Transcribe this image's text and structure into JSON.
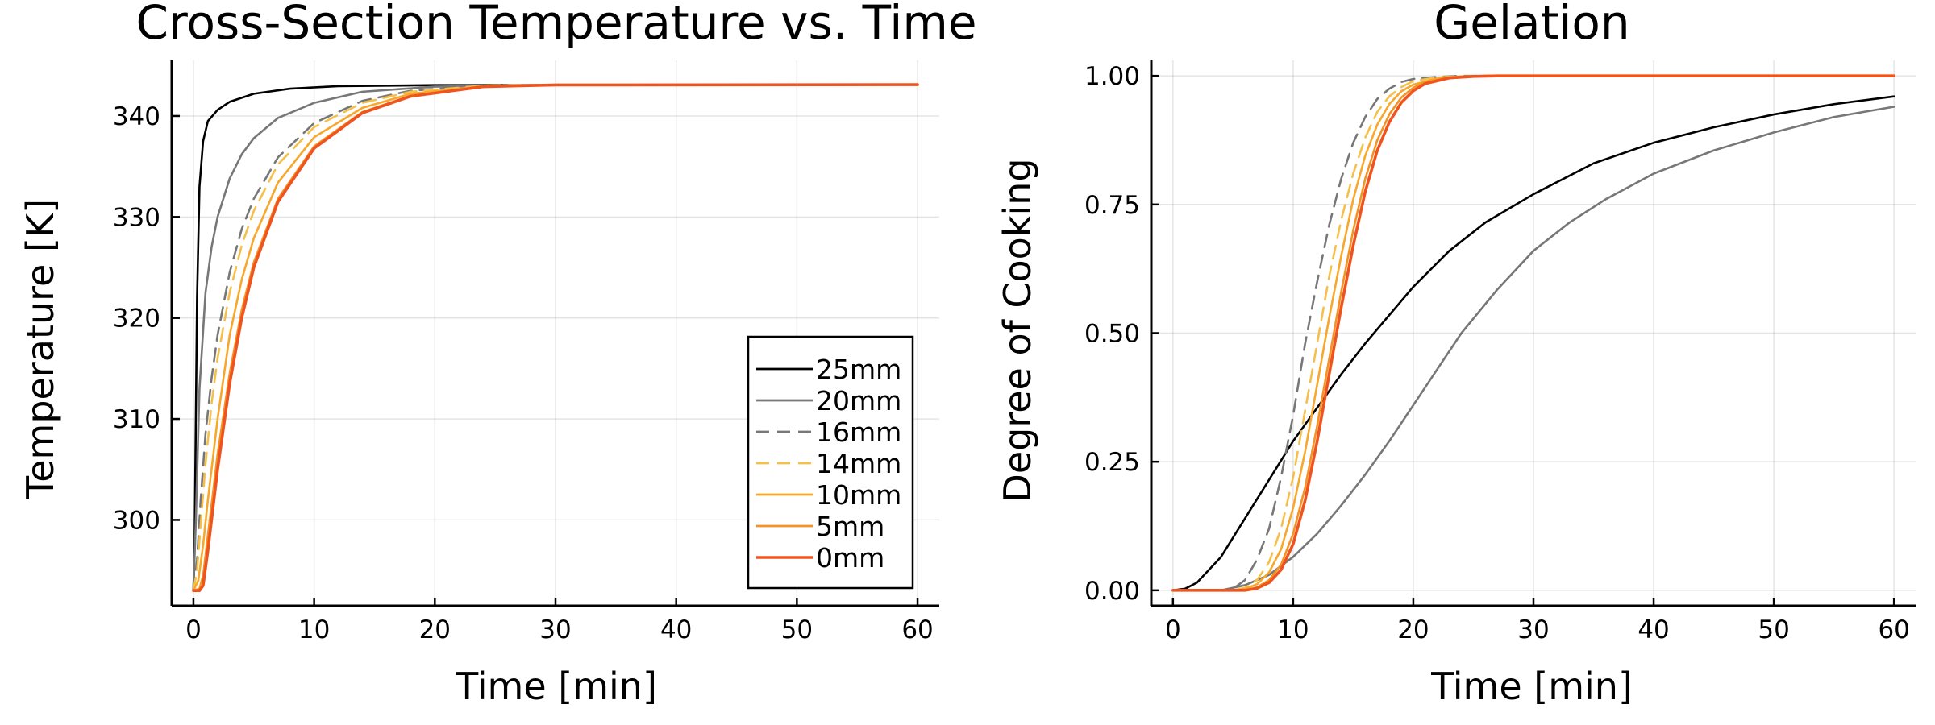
{
  "chart_data": [
    {
      "type": "line",
      "title": "Cross-Section Temperature vs. Time",
      "xlabel": "Time [min]",
      "ylabel": "Temperature [K]",
      "xlim": [
        -1.8,
        61.8
      ],
      "ylim": [
        291.5,
        345.5
      ],
      "xticks": [
        0,
        10,
        20,
        30,
        40,
        50,
        60
      ],
      "yticks": [
        300,
        310,
        320,
        330,
        340
      ],
      "grid": true,
      "legend": "bottom-right",
      "series": [
        {
          "name": "25mm",
          "color": "#000000",
          "dash": "solid",
          "x": [
            0,
            0.1,
            0.2,
            0.3,
            0.5,
            0.8,
            1.2,
            2,
            3,
            5,
            8,
            12,
            20,
            60
          ],
          "y": [
            293,
            298,
            310,
            322,
            333,
            337.5,
            339.5,
            340.6,
            341.4,
            342.2,
            342.7,
            342.95,
            343.05,
            343.1
          ]
        },
        {
          "name": "20mm",
          "color": "#777777",
          "dash": "solid",
          "x": [
            0,
            0.2,
            0.5,
            1,
            1.5,
            2,
            3,
            4,
            5,
            7,
            10,
            14,
            20,
            30,
            60
          ],
          "y": [
            293,
            300,
            313,
            322.5,
            327,
            330,
            333.8,
            336.2,
            337.8,
            339.8,
            341.3,
            342.4,
            342.9,
            343.05,
            343.1
          ]
        },
        {
          "name": "16mm",
          "color": "#777777",
          "dash": "dashed",
          "x": [
            0,
            0.3,
            0.6,
            1,
            1.5,
            2,
            3,
            4,
            5,
            7,
            10,
            14,
            18,
            24,
            30,
            60
          ],
          "y": [
            293,
            296,
            302,
            308.5,
            314,
            318.3,
            324.5,
            328.8,
            331.8,
            335.9,
            339.3,
            341.5,
            342.5,
            343,
            343.08,
            343.1
          ]
        },
        {
          "name": "14mm",
          "color": "#f5c04a",
          "dash": "dashed",
          "x": [
            0,
            0.3,
            0.6,
            1,
            1.5,
            2,
            3,
            4,
            5,
            7,
            10,
            14,
            18,
            24,
            30,
            60
          ],
          "y": [
            293,
            295,
            299.5,
            305.5,
            311.5,
            316,
            322.5,
            327.2,
            330.6,
            335.2,
            338.9,
            341.3,
            342.4,
            343,
            343.08,
            343.1
          ]
        },
        {
          "name": "10mm",
          "color": "#f7a82a",
          "dash": "solid",
          "x": [
            0,
            0.4,
            0.8,
            1.2,
            2,
            3,
            4,
            5,
            7,
            10,
            14,
            18,
            24,
            30,
            60
          ],
          "y": [
            293,
            294,
            297.5,
            302,
            310,
            318.3,
            323.8,
            327.9,
            333.4,
            337.9,
            340.8,
            342.2,
            342.95,
            343.08,
            343.1
          ]
        },
        {
          "name": "5mm",
          "color": "#f39324",
          "dash": "solid",
          "x": [
            0,
            0.5,
            0.8,
            1.2,
            2,
            3,
            4,
            5,
            7,
            10,
            14,
            18,
            24,
            30,
            60
          ],
          "y": [
            293,
            293.2,
            294.5,
            298.5,
            306.5,
            314.5,
            320.8,
            325.5,
            331.8,
            337,
            340.4,
            342,
            342.9,
            343.07,
            343.1
          ]
        },
        {
          "name": "0mm",
          "color": "#f0541e",
          "dash": "solid",
          "x": [
            0,
            0.5,
            0.8,
            1.2,
            2,
            3,
            4,
            5,
            7,
            10,
            14,
            18,
            24,
            30,
            60
          ],
          "y": [
            293,
            293,
            293.5,
            297,
            305,
            313.5,
            320,
            325,
            331.5,
            336.8,
            340.3,
            341.95,
            342.9,
            343.07,
            343.1
          ]
        }
      ]
    },
    {
      "type": "line",
      "title": "Gelation",
      "xlabel": "Time [min]",
      "ylabel": "Degree of Cooking",
      "xlim": [
        -1.8,
        61.8
      ],
      "ylim": [
        -0.03,
        1.03
      ],
      "xticks": [
        0,
        10,
        20,
        30,
        40,
        50,
        60
      ],
      "yticks": [
        0.0,
        0.25,
        0.5,
        0.75,
        1.0
      ],
      "ytick_labels": [
        "0.00",
        "0.25",
        "0.50",
        "0.75",
        "1.00"
      ],
      "grid": true,
      "series": [
        {
          "name": "25mm",
          "color": "#000000",
          "dash": "solid",
          "x": [
            0,
            1,
            2,
            4,
            6,
            8,
            10,
            12,
            14,
            16,
            18,
            20,
            23,
            26,
            30,
            35,
            40,
            45,
            50,
            55,
            60
          ],
          "y": [
            0,
            0.003,
            0.015,
            0.065,
            0.14,
            0.215,
            0.29,
            0.355,
            0.42,
            0.48,
            0.535,
            0.59,
            0.66,
            0.715,
            0.77,
            0.83,
            0.87,
            0.9,
            0.925,
            0.945,
            0.96
          ]
        },
        {
          "name": "20mm",
          "color": "#777777",
          "dash": "solid",
          "x": [
            0,
            4,
            6,
            8,
            10,
            12,
            14,
            16,
            18,
            20,
            22,
            24,
            27,
            30,
            33,
            36,
            40,
            45,
            50,
            55,
            60
          ],
          "y": [
            0,
            0,
            0.01,
            0.03,
            0.065,
            0.11,
            0.165,
            0.225,
            0.29,
            0.36,
            0.43,
            0.5,
            0.585,
            0.66,
            0.715,
            0.76,
            0.81,
            0.855,
            0.89,
            0.92,
            0.94
          ]
        },
        {
          "name": "16mm",
          "color": "#777777",
          "dash": "dashed",
          "x": [
            0,
            4,
            5,
            6,
            7,
            8,
            9,
            10,
            11,
            12,
            13,
            14,
            15,
            16,
            17,
            18,
            19,
            20,
            22,
            24,
            26,
            60
          ],
          "y": [
            0,
            0,
            0.003,
            0.02,
            0.06,
            0.12,
            0.22,
            0.34,
            0.48,
            0.6,
            0.71,
            0.8,
            0.87,
            0.92,
            0.955,
            0.975,
            0.988,
            0.994,
            0.998,
            1.0,
            1.0,
            1.0
          ]
        },
        {
          "name": "14mm",
          "color": "#f5c04a",
          "dash": "dashed",
          "x": [
            0,
            5,
            6,
            7,
            8,
            9,
            10,
            11,
            12,
            13,
            14,
            15,
            16,
            17,
            18,
            19,
            20,
            22,
            24,
            26,
            60
          ],
          "y": [
            0,
            0,
            0.005,
            0.02,
            0.055,
            0.12,
            0.22,
            0.35,
            0.48,
            0.61,
            0.72,
            0.81,
            0.88,
            0.93,
            0.96,
            0.978,
            0.99,
            0.997,
            0.999,
            1.0,
            1.0
          ]
        },
        {
          "name": "10mm",
          "color": "#f7a82a",
          "dash": "solid",
          "x": [
            0,
            5,
            6,
            7,
            8,
            9,
            10,
            11,
            12,
            13,
            14,
            15,
            16,
            17,
            18,
            19,
            20,
            22,
            24,
            26,
            60
          ],
          "y": [
            0,
            0,
            0.003,
            0.012,
            0.035,
            0.08,
            0.16,
            0.27,
            0.4,
            0.53,
            0.65,
            0.76,
            0.845,
            0.905,
            0.945,
            0.97,
            0.983,
            0.995,
            0.999,
            1.0,
            1.0
          ]
        },
        {
          "name": "5mm",
          "color": "#f39324",
          "dash": "solid",
          "x": [
            0,
            6,
            7,
            8,
            9,
            10,
            11,
            12,
            13,
            14,
            15,
            16,
            17,
            18,
            19,
            20,
            21,
            23,
            25,
            27,
            60
          ],
          "y": [
            0,
            0,
            0.006,
            0.02,
            0.05,
            0.11,
            0.2,
            0.32,
            0.45,
            0.58,
            0.7,
            0.8,
            0.875,
            0.925,
            0.958,
            0.977,
            0.988,
            0.997,
            0.999,
            1.0,
            1.0
          ]
        },
        {
          "name": "0mm",
          "color": "#f0541e",
          "dash": "solid",
          "x": [
            0,
            6,
            7,
            8,
            9,
            10,
            11,
            12,
            13,
            14,
            15,
            16,
            17,
            18,
            19,
            20,
            21,
            23,
            25,
            27,
            60
          ],
          "y": [
            0,
            0,
            0.004,
            0.015,
            0.04,
            0.09,
            0.175,
            0.29,
            0.42,
            0.55,
            0.67,
            0.775,
            0.855,
            0.91,
            0.948,
            0.971,
            0.985,
            0.996,
            0.999,
            1.0,
            1.0
          ]
        }
      ]
    }
  ]
}
